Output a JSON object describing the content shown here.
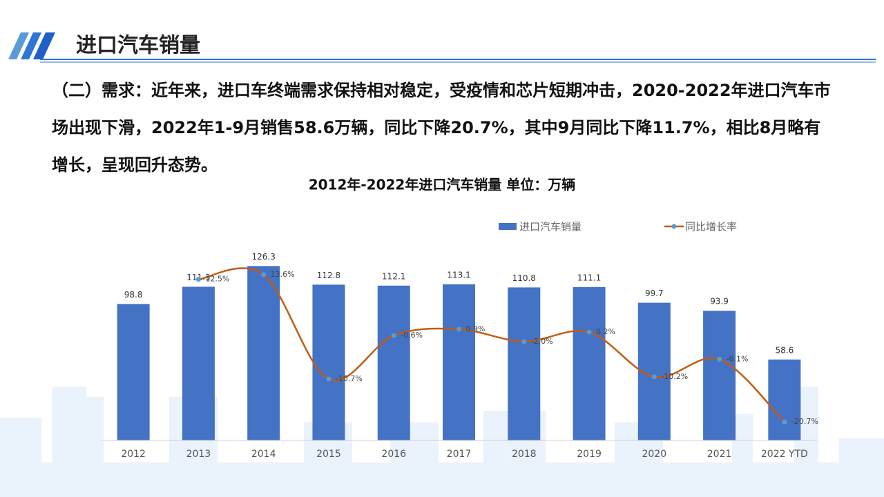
{
  "header": {
    "title": "进口汽车销量"
  },
  "paragraph": "（二）需求：近年来，进口车终端需求保持相对稳定，受疫情和芯片短期冲击，2020-2022年进口汽车市场出现下滑，2022年1-9月销售58.6万辆，同比下降20.7%，其中9月同比下降11.7%，相比8月略有增长，呈现回升态势。",
  "chart_data": {
    "type": "bar",
    "title": "2012年-2022年进口汽车销量  单位：万辆",
    "categories": [
      "2012",
      "2013",
      "2014",
      "2015",
      "2016",
      "2017",
      "2018",
      "2019",
      "2020",
      "2021",
      "2022 YTD"
    ],
    "series": [
      {
        "name": "进口汽车销量",
        "type": "bar",
        "color": "#4472c4",
        "values": [
          98.8,
          111.3,
          126.3,
          112.8,
          112.1,
          113.1,
          110.8,
          111.1,
          99.7,
          93.9,
          58.6
        ]
      },
      {
        "name": "同比增长率",
        "type": "line",
        "axis": "y2",
        "color": "#c55a11",
        "marker_color": "#5b9bd5",
        "smooth": true,
        "values": [
          null,
          12.5,
          13.6,
          -10.7,
          -0.6,
          0.9,
          -2.0,
          0.2,
          -10.2,
          -6.1,
          -20.7
        ],
        "value_labels": [
          null,
          "12.5%",
          "13.6%",
          "-10.7%",
          "-0.6%",
          "0.9%",
          "-2.0%",
          "0.2%",
          "-10.2%",
          "-6.1%",
          "-20.7%"
        ]
      }
    ],
    "ylim": [
      0,
      140
    ],
    "y2lim": [
      -25,
      20
    ],
    "legend": "top",
    "grid": false
  }
}
